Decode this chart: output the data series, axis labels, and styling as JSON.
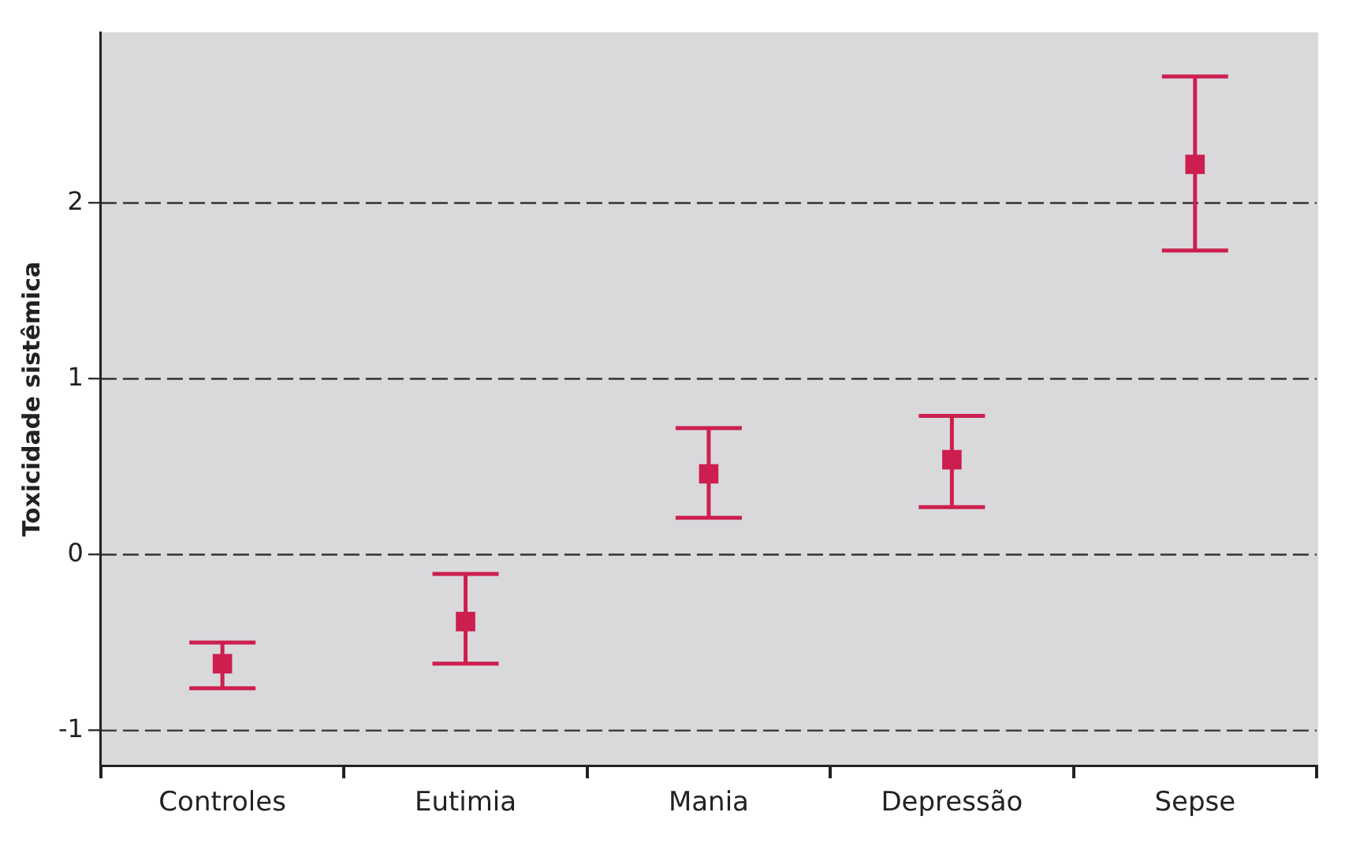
{
  "chart_data": {
    "type": "scatter",
    "ylabel": "Toxicidade sistêmica",
    "categories": [
      "Controles",
      "Eutimia",
      "Mania",
      "Depressão",
      "Sepse"
    ],
    "color": "#cc1f4f",
    "values": [
      -0.62,
      -0.38,
      0.46,
      0.54,
      2.22
    ],
    "errors": [
      [
        -0.76,
        -0.5
      ],
      [
        -0.62,
        -0.11
      ],
      [
        0.21,
        0.72
      ],
      [
        0.27,
        0.79
      ],
      [
        1.73,
        2.72
      ]
    ],
    "ylim": [
      -1.2,
      2.97
    ],
    "yticks": [
      -1,
      0,
      1,
      2
    ],
    "grid": "y",
    "line_style": "dashed",
    "marker": "square",
    "legend": false
  }
}
